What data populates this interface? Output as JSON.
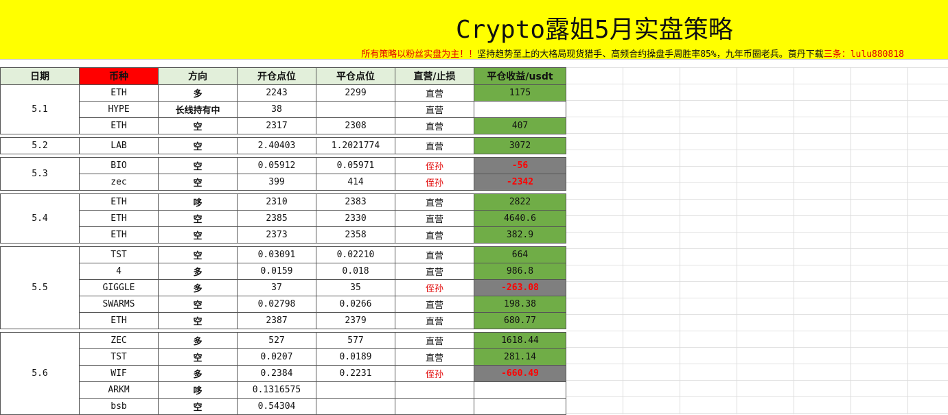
{
  "header": {
    "title": "Crypto露姐5月实盘策略",
    "subtitle": {
      "part1": "所有策略以粉丝实盘为主！！",
      "part2": "坚持趋势至上的大格局现货猎手、高频合约操盘手周胜率85%，九年币圈老兵。莨丹下载",
      "part3": "三条：lulu880818"
    }
  },
  "columns": [
    "日期",
    "币种",
    "方向",
    "开仓点位",
    "平仓点位",
    "直营/止损",
    "平仓收益/usdt"
  ],
  "groups": [
    {
      "date": "5.1",
      "rows": [
        {
          "coin": "ETH",
          "dir": "多",
          "open": "2243",
          "close": "2299",
          "type": "直营",
          "profit": "1175",
          "result": "win"
        },
        {
          "coin": "HYPE",
          "dir": "长线持有中",
          "open": "38",
          "close": "",
          "type": "直营",
          "profit": "",
          "result": "none"
        },
        {
          "coin": "ETH",
          "dir": "空",
          "open": "2317",
          "close": "2308",
          "type": "直营",
          "profit": "407",
          "result": "win"
        }
      ]
    },
    {
      "date": "5.2",
      "rows": [
        {
          "coin": "LAB",
          "dir": "空",
          "open": "2.40403",
          "close": "1.2021774",
          "type": "直营",
          "profit": "3072",
          "result": "win"
        }
      ]
    },
    {
      "date": "5.3",
      "rows": [
        {
          "coin": "BIO",
          "dir": "空",
          "open": "0.05912",
          "close": "0.05971",
          "type": "侄孙",
          "profit": "-56",
          "result": "loss"
        },
        {
          "coin": "zec",
          "dir": "空",
          "open": "399",
          "close": "414",
          "type": "侄孙",
          "profit": "-2342",
          "result": "loss"
        }
      ]
    },
    {
      "date": "5.4",
      "rows": [
        {
          "coin": "ETH",
          "dir": "哆",
          "open": "2310",
          "close": "2383",
          "type": "直营",
          "profit": "2822",
          "result": "win"
        },
        {
          "coin": "ETH",
          "dir": "空",
          "open": "2385",
          "close": "2330",
          "type": "直营",
          "profit": "4640.6",
          "result": "win"
        },
        {
          "coin": "ETH",
          "dir": "空",
          "open": "2373",
          "close": "2358",
          "type": "直营",
          "profit": "382.9",
          "result": "win"
        }
      ]
    },
    {
      "date": "5.5",
      "rows": [
        {
          "coin": "TST",
          "dir": "空",
          "open": "0.03091",
          "close": "0.02210",
          "type": "直营",
          "profit": "664",
          "result": "win"
        },
        {
          "coin": "4",
          "dir": "多",
          "open": "0.0159",
          "close": "0.018",
          "type": "直营",
          "profit": "986.8",
          "result": "win"
        },
        {
          "coin": "GIGGLE",
          "dir": "多",
          "open": "37",
          "close": "35",
          "type": "侄孙",
          "profit": "-263.08",
          "result": "loss"
        },
        {
          "coin": "SWARMS",
          "dir": "空",
          "open": "0.02798",
          "close": "0.0266",
          "type": "直营",
          "profit": "198.38",
          "result": "win"
        },
        {
          "coin": "ETH",
          "dir": "空",
          "open": "2387",
          "close": "2379",
          "type": "直营",
          "profit": "680.77",
          "result": "win"
        }
      ]
    },
    {
      "date": "5.6",
      "rows": [
        {
          "coin": "ZEC",
          "dir": "多",
          "open": "527",
          "close": "577",
          "type": "直营",
          "profit": "1618.44",
          "result": "win"
        },
        {
          "coin": "TST",
          "dir": "空",
          "open": "0.0207",
          "close": "0.0189",
          "type": "直营",
          "profit": "281.14",
          "result": "win"
        },
        {
          "coin": "WIF",
          "dir": "多",
          "open": "0.2384",
          "close": "0.2231",
          "type": "侄孙",
          "profit": "-660.49",
          "result": "loss"
        },
        {
          "coin": "ARKM",
          "dir": "哆",
          "open": "0.1316575",
          "close": "",
          "type": "",
          "profit": "",
          "result": "none"
        },
        {
          "coin": "bsb",
          "dir": "空",
          "open": "0.54304",
          "close": "",
          "type": "",
          "profit": "",
          "result": "none"
        }
      ]
    }
  ],
  "colors": {
    "header_bg": "#ffff00",
    "coin_header": "#ff0000",
    "profit_win": "#70ad47",
    "profit_loss": "#7f7f7f",
    "loss_text": "#ff0000"
  }
}
